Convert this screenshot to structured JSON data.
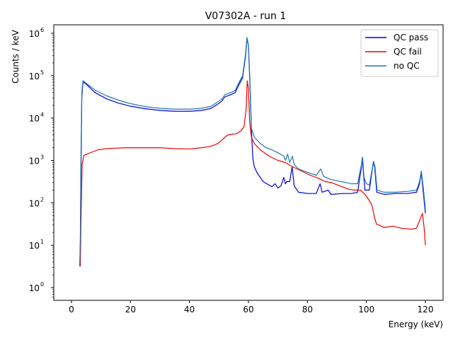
{
  "chart_data": {
    "type": "line",
    "title": "V07302A - run 1",
    "xlabel": "Energy (keV)",
    "ylabel": "Counts / keV",
    "xlim": [
      -6,
      126
    ],
    "ylim_log10": [
      -0.3,
      6.2
    ],
    "yscale": "log",
    "x_ticks": [
      0,
      20,
      40,
      60,
      80,
      100,
      120
    ],
    "x_tick_labels": [
      "0",
      "20",
      "40",
      "60",
      "80",
      "100",
      "120"
    ],
    "y_ticks": [
      0,
      1,
      2,
      3,
      4,
      5,
      6
    ],
    "y_tick_labels": [
      "10",
      "10",
      "10",
      "10",
      "10",
      "10",
      "10"
    ],
    "y_tick_exponents": [
      "0",
      "1",
      "2",
      "3",
      "4",
      "5",
      "6"
    ],
    "grid": false,
    "legend_position": "top-right",
    "series": [
      {
        "name": "QC pass",
        "color": "#0000dd",
        "points": [
          [
            2.8,
            0.5
          ],
          [
            3.0,
            1.0
          ],
          [
            3.2,
            2.5
          ],
          [
            3.5,
            4.5
          ],
          [
            3.9,
            4.85
          ],
          [
            5,
            4.8
          ],
          [
            8,
            4.6
          ],
          [
            12,
            4.45
          ],
          [
            16,
            4.35
          ],
          [
            20,
            4.28
          ],
          [
            25,
            4.22
          ],
          [
            30,
            4.18
          ],
          [
            35,
            4.16
          ],
          [
            40,
            4.16
          ],
          [
            44,
            4.18
          ],
          [
            47,
            4.22
          ],
          [
            49,
            4.3
          ],
          [
            51,
            4.4
          ],
          [
            52,
            4.5
          ],
          [
            54,
            4.55
          ],
          [
            55.5,
            4.6
          ],
          [
            56.5,
            4.75
          ],
          [
            58,
            4.95
          ],
          [
            59,
            5.45
          ],
          [
            59.5,
            5.88
          ],
          [
            60,
            5.7
          ],
          [
            60.5,
            4.8
          ],
          [
            61,
            3.7
          ],
          [
            61.5,
            3.05
          ],
          [
            62,
            2.85
          ],
          [
            63,
            2.7
          ],
          [
            65,
            2.5
          ],
          [
            68,
            2.38
          ],
          [
            69,
            2.45
          ],
          [
            70,
            2.35
          ],
          [
            71,
            2.4
          ],
          [
            72,
            2.6
          ],
          [
            72.5,
            2.45
          ],
          [
            73,
            2.5
          ],
          [
            74,
            2.5
          ],
          [
            74.8,
            2.85
          ],
          [
            75.5,
            2.4
          ],
          [
            77,
            2.25
          ],
          [
            80,
            2.22
          ],
          [
            83,
            2.22
          ],
          [
            84.3,
            2.45
          ],
          [
            85,
            2.25
          ],
          [
            87,
            2.3
          ],
          [
            88,
            2.2
          ],
          [
            92,
            2.22
          ],
          [
            95,
            2.22
          ],
          [
            97,
            2.25
          ],
          [
            98.3,
            2.85
          ],
          [
            98.6,
            3.05
          ],
          [
            99,
            2.7
          ],
          [
            99.5,
            2.3
          ],
          [
            101,
            2.3
          ],
          [
            102.3,
            2.95
          ],
          [
            102.8,
            2.85
          ],
          [
            103.5,
            2.25
          ],
          [
            106,
            2.2
          ],
          [
            110,
            2.22
          ],
          [
            114,
            2.22
          ],
          [
            117,
            2.25
          ],
          [
            118,
            2.45
          ],
          [
            118.6,
            2.72
          ],
          [
            119.2,
            2.3
          ],
          [
            120,
            1.75
          ]
        ]
      },
      {
        "name": "QC fail",
        "color": "#ee0000",
        "points": [
          [
            3.0,
            0.5
          ],
          [
            3.2,
            1.5
          ],
          [
            3.6,
            2.9
          ],
          [
            4.2,
            3.12
          ],
          [
            6,
            3.17
          ],
          [
            9,
            3.25
          ],
          [
            12,
            3.28
          ],
          [
            18,
            3.3
          ],
          [
            24,
            3.3
          ],
          [
            30,
            3.3
          ],
          [
            35,
            3.28
          ],
          [
            40,
            3.27
          ],
          [
            44,
            3.3
          ],
          [
            47,
            3.33
          ],
          [
            49,
            3.38
          ],
          [
            50,
            3.42
          ],
          [
            51,
            3.48
          ],
          [
            52,
            3.55
          ],
          [
            53,
            3.6
          ],
          [
            54.5,
            3.62
          ],
          [
            56,
            3.63
          ],
          [
            57.5,
            3.7
          ],
          [
            58.5,
            3.8
          ],
          [
            59.2,
            4.2
          ],
          [
            59.6,
            4.88
          ],
          [
            60,
            4.7
          ],
          [
            60.4,
            3.9
          ],
          [
            61,
            3.55
          ],
          [
            62,
            3.4
          ],
          [
            64,
            3.25
          ],
          [
            67,
            3.1
          ],
          [
            70,
            3.0
          ],
          [
            72.5,
            2.95
          ],
          [
            75,
            2.85
          ],
          [
            78,
            2.75
          ],
          [
            81,
            2.65
          ],
          [
            84,
            2.57
          ],
          [
            86,
            2.5
          ],
          [
            88,
            2.48
          ],
          [
            91,
            2.4
          ],
          [
            94,
            2.32
          ],
          [
            96,
            2.3
          ],
          [
            98,
            2.3
          ],
          [
            99.5,
            2.2
          ],
          [
            100.5,
            2.1
          ],
          [
            101.5,
            2.0
          ],
          [
            102,
            1.9
          ],
          [
            102.6,
            1.7
          ],
          [
            103.4,
            1.5
          ],
          [
            106,
            1.42
          ],
          [
            109,
            1.45
          ],
          [
            112,
            1.4
          ],
          [
            115,
            1.38
          ],
          [
            117,
            1.4
          ],
          [
            118.4,
            1.65
          ],
          [
            119,
            1.75
          ],
          [
            119.6,
            1.4
          ],
          [
            120,
            1.0
          ]
        ]
      },
      {
        "name": "no QC",
        "color": "#1f77b4",
        "points": [
          [
            2.8,
            0.5
          ],
          [
            3.0,
            1.2
          ],
          [
            3.2,
            3.0
          ],
          [
            3.5,
            4.6
          ],
          [
            3.9,
            4.88
          ],
          [
            5,
            4.82
          ],
          [
            8,
            4.66
          ],
          [
            12,
            4.52
          ],
          [
            16,
            4.42
          ],
          [
            20,
            4.34
          ],
          [
            25,
            4.27
          ],
          [
            30,
            4.23
          ],
          [
            35,
            4.21
          ],
          [
            40,
            4.21
          ],
          [
            44,
            4.23
          ],
          [
            47,
            4.27
          ],
          [
            49,
            4.35
          ],
          [
            51,
            4.45
          ],
          [
            52,
            4.55
          ],
          [
            54,
            4.6
          ],
          [
            55.5,
            4.65
          ],
          [
            56.5,
            4.8
          ],
          [
            58,
            5.0
          ],
          [
            59,
            5.5
          ],
          [
            59.5,
            5.9
          ],
          [
            60,
            5.72
          ],
          [
            60.5,
            4.9
          ],
          [
            61,
            3.75
          ],
          [
            62,
            3.55
          ],
          [
            64,
            3.4
          ],
          [
            66,
            3.3
          ],
          [
            68,
            3.25
          ],
          [
            70,
            3.18
          ],
          [
            72,
            3.1
          ],
          [
            72.6,
            3.0
          ],
          [
            73.3,
            3.15
          ],
          [
            74,
            2.95
          ],
          [
            74.9,
            3.1
          ],
          [
            75.5,
            2.9
          ],
          [
            77,
            2.8
          ],
          [
            80,
            2.72
          ],
          [
            83,
            2.65
          ],
          [
            84.5,
            2.8
          ],
          [
            85.5,
            2.62
          ],
          [
            88,
            2.55
          ],
          [
            90,
            2.52
          ],
          [
            93,
            2.48
          ],
          [
            95,
            2.45
          ],
          [
            97,
            2.45
          ],
          [
            98.3,
            2.9
          ],
          [
            98.7,
            3.08
          ],
          [
            99.2,
            2.6
          ],
          [
            100,
            2.45
          ],
          [
            101,
            2.42
          ],
          [
            102.4,
            2.98
          ],
          [
            102.9,
            2.85
          ],
          [
            103.6,
            2.3
          ],
          [
            106,
            2.25
          ],
          [
            110,
            2.25
          ],
          [
            114,
            2.27
          ],
          [
            117,
            2.3
          ],
          [
            118,
            2.5
          ],
          [
            118.6,
            2.75
          ],
          [
            119.3,
            2.35
          ],
          [
            120,
            1.85
          ]
        ]
      }
    ]
  }
}
